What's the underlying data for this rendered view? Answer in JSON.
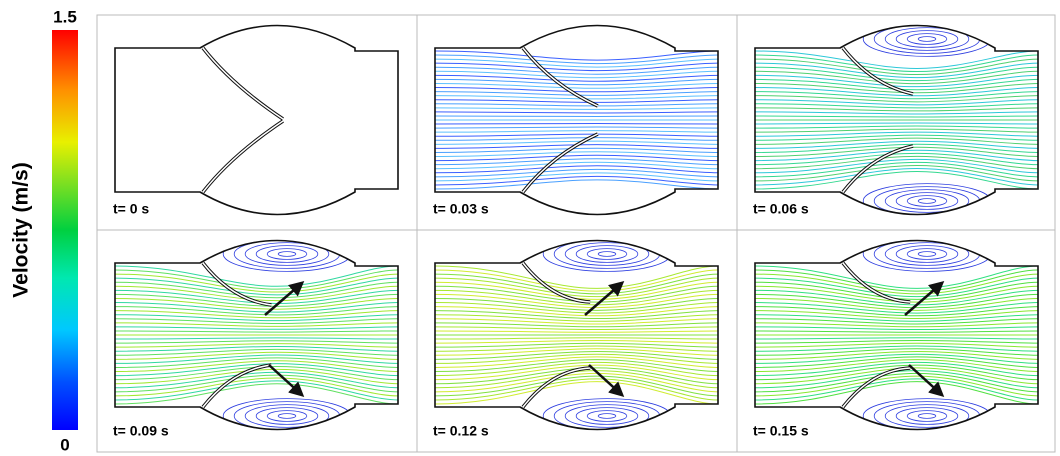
{
  "colorbar": {
    "title": "Velocity (m/s)",
    "max": 1.5,
    "min": 0
  },
  "panels": [
    {
      "label": "t= 0 s"
    },
    {
      "label": "t= 0.03 s"
    },
    {
      "label": "t= 0.06 s"
    },
    {
      "label": "t= 0.09 s"
    },
    {
      "label": "t= 0.12 s"
    },
    {
      "label": "t= 0.15 s"
    }
  ]
}
